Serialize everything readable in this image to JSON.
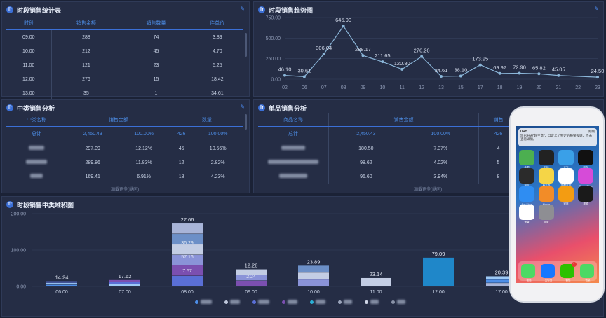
{
  "colors": {
    "accent": "#3b6fd6",
    "header_text": "#4d8ee8",
    "line": "#8bb6d9",
    "bar_blue": "#1f87c9"
  },
  "panel1": {
    "title": "时段销售统计表",
    "headers": [
      "时段",
      "销售金额",
      "销售数量",
      "件单价"
    ],
    "rows": [
      [
        "09:00",
        "288",
        "74",
        "3.89"
      ],
      [
        "10:00",
        "212",
        "45",
        "4.70"
      ],
      [
        "11:00",
        "121",
        "23",
        "5.25"
      ],
      [
        "12:00",
        "276",
        "15",
        "18.42"
      ],
      [
        "13:00",
        "35",
        "1",
        "34.61"
      ]
    ]
  },
  "panel2": {
    "title": "时段销售趋势图"
  },
  "panel3": {
    "title": "中类销售分析",
    "headers": [
      "中类名称",
      "销售金额",
      "数量"
    ],
    "total": [
      "总计",
      "2,450.43",
      "100.00%",
      "426",
      "100.00%"
    ],
    "rows": [
      [
        "",
        "297.09",
        "12.12%",
        "45",
        "10.56%"
      ],
      [
        "",
        "289.86",
        "11.83%",
        "12",
        "2.82%"
      ],
      [
        "",
        "169.41",
        "6.91%",
        "18",
        "4.23%"
      ]
    ],
    "more": "加载更多(纵向)"
  },
  "panel4": {
    "title": "单品销售分析",
    "headers": [
      "商品名称",
      "销售金额",
      "销售"
    ],
    "total": [
      "总计",
      "2,450.43",
      "100.00%",
      "426"
    ],
    "rows": [
      [
        "",
        "180.50",
        "7.37%",
        "4"
      ],
      [
        "",
        "98.62",
        "4.02%",
        "5"
      ],
      [
        "",
        "96.60",
        "3.94%",
        "8"
      ]
    ],
    "more": "加载更多(纵向)"
  },
  "panel5": {
    "title": "时段销售中类堆积图"
  },
  "phone": {
    "notif_app": "UHT",
    "notif_time": "刚刚",
    "notif_text": "您已开通“好主意”，自定义了特定的报警规则，点击查看详情。",
    "apps": [
      {
        "label": "地图",
        "color": "#4caf50"
      },
      {
        "label": "时钟",
        "color": "#222222"
      },
      {
        "label": "天气",
        "color": "#3aa0e8"
      },
      {
        "label": "股市",
        "color": "#111111"
      },
      {
        "label": "钱包",
        "color": "#2b2b2b"
      },
      {
        "label": "备忘录",
        "color": "#f5d547"
      },
      {
        "label": "提醒事项",
        "color": "#ffffff"
      },
      {
        "label": "iTunes Store",
        "color": "#d64bd8"
      },
      {
        "label": "App Store",
        "color": "#2f8df2"
      },
      {
        "label": "iBooks",
        "color": "#f28c28"
      },
      {
        "label": "家庭",
        "color": "#f39c12"
      },
      {
        "label": "视频",
        "color": "#1a1a1a"
      },
      {
        "label": "健康",
        "color": "#ffffff"
      },
      {
        "label": "设置",
        "color": "#8e8e93"
      }
    ],
    "dock": [
      {
        "label": "电话",
        "color": "#4cd964"
      },
      {
        "label": "支付宝",
        "color": "#1677ff"
      },
      {
        "label": "微信",
        "color": "#2dc100",
        "badge": "1"
      },
      {
        "label": "信息",
        "color": "#4cd964"
      }
    ]
  },
  "chart_data": [
    {
      "type": "line",
      "x": [
        "02",
        "06",
        "07",
        "08",
        "09",
        "10",
        "11",
        "12",
        "13",
        "15",
        "17",
        "18",
        "19",
        "20",
        "21",
        "22",
        "23"
      ],
      "series": [
        {
          "values": [
            46.1,
            30.61,
            306.04,
            645.9,
            288.17,
            211.65,
            120.8,
            276.26,
            34.61,
            38.1,
            173.95,
            69.97,
            72.9,
            65.82,
            45.05,
            null,
            24.5
          ]
        }
      ],
      "yticks": [
        "0.00",
        "250.00",
        "500.00",
        "750.00"
      ],
      "ylim": [
        0,
        750
      ]
    },
    {
      "type": "bar",
      "stacked": true,
      "categories": [
        "06:00",
        "07:00",
        "08:00",
        "09:00",
        "10:00",
        "11:00",
        "12:00",
        "17:00"
      ],
      "totals": [
        14.24,
        17.62,
        27.66,
        12.28,
        23.89,
        23.14,
        79.09,
        20.39
      ],
      "inner_labels": [
        {
          "category": "08:00",
          "labels": [
            "36.29",
            "57.16",
            "7.57"
          ]
        },
        {
          "category": "09:00",
          "labels": [
            "2.24"
          ]
        }
      ],
      "yticks": [
        "0.00",
        "100.00",
        "200.00"
      ],
      "ylim": [
        0,
        200
      ]
    }
  ]
}
